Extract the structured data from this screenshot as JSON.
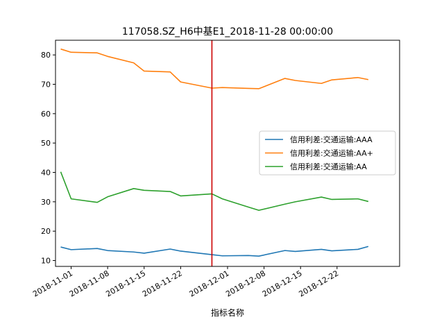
{
  "chart_data": {
    "type": "line",
    "title": "117058.SZ_H6中基E1_2018-11-28 00:00:00",
    "xlabel": "指标名称",
    "ylabel": "",
    "x_type": "date",
    "xlim": [
      "2018-10-29",
      "2019-01-03"
    ],
    "ylim": [
      8,
      85
    ],
    "x_ticks": [
      "2018-11-01",
      "2018-11-08",
      "2018-11-15",
      "2018-11-22",
      "2018-12-01",
      "2018-12-08",
      "2018-12-15",
      "2018-12-22"
    ],
    "y_ticks": [
      10,
      20,
      30,
      40,
      50,
      60,
      70,
      80
    ],
    "grid": false,
    "legend_position": "right",
    "marker_line": {
      "x": "2018-11-28",
      "color": "#cc0000"
    },
    "series": [
      {
        "name": "信用利差:交通运输:AAA",
        "color": "#1f77b4",
        "x": [
          "2018-10-30",
          "2018-11-01",
          "2018-11-06",
          "2018-11-08",
          "2018-11-13",
          "2018-11-15",
          "2018-11-20",
          "2018-11-22",
          "2018-11-28",
          "2018-11-30",
          "2018-12-05",
          "2018-12-07",
          "2018-12-12",
          "2018-12-14",
          "2018-12-19",
          "2018-12-21",
          "2018-12-26",
          "2018-12-28"
        ],
        "y": [
          14.6,
          13.7,
          14.1,
          13.4,
          12.9,
          12.5,
          13.9,
          13.2,
          12.0,
          11.6,
          11.7,
          11.5,
          13.4,
          13.1,
          13.8,
          13.3,
          13.8,
          14.8
        ]
      },
      {
        "name": "信用利差:交通运输:AA+",
        "color": "#ff7f0e",
        "x": [
          "2018-10-30",
          "2018-11-01",
          "2018-11-06",
          "2018-11-08",
          "2018-11-13",
          "2018-11-15",
          "2018-11-20",
          "2018-11-22",
          "2018-11-28",
          "2018-11-30",
          "2018-12-05",
          "2018-12-07",
          "2018-12-12",
          "2018-12-14",
          "2018-12-19",
          "2018-12-21",
          "2018-12-26",
          "2018-12-28"
        ],
        "y": [
          82.0,
          80.9,
          80.7,
          79.5,
          77.3,
          74.5,
          74.2,
          70.8,
          68.7,
          68.9,
          68.6,
          68.5,
          72.0,
          71.3,
          70.3,
          71.5,
          72.3,
          71.6
        ]
      },
      {
        "name": "信用利差:交通运输:AA",
        "color": "#2ca02c",
        "x": [
          "2018-10-30",
          "2018-11-01",
          "2018-11-06",
          "2018-11-08",
          "2018-11-13",
          "2018-11-15",
          "2018-11-20",
          "2018-11-22",
          "2018-11-28",
          "2018-11-30",
          "2018-12-05",
          "2018-12-07",
          "2018-12-12",
          "2018-12-14",
          "2018-12-19",
          "2018-12-21",
          "2018-12-26",
          "2018-12-28"
        ],
        "y": [
          40.2,
          31.0,
          29.8,
          31.7,
          34.5,
          33.9,
          33.5,
          32.0,
          32.7,
          31.0,
          28.2,
          27.1,
          29.2,
          30.0,
          31.6,
          30.8,
          31.0,
          30.1
        ]
      }
    ]
  }
}
